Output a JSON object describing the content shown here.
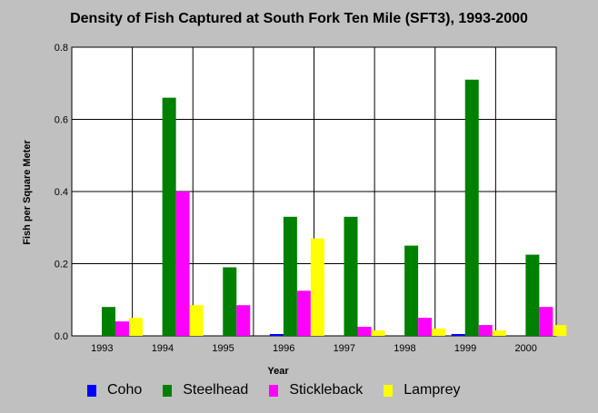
{
  "chart_data": {
    "type": "bar",
    "title": "Density of Fish Captured at South Fork Ten Mile (SFT3), 1993-2000",
    "xlabel": "Year",
    "ylabel": "Fish per Square Meter",
    "ylim": [
      0,
      0.8
    ],
    "yticks": [
      "0.0",
      "0.2",
      "0.4",
      "0.6",
      "0.8"
    ],
    "categories": [
      "1993",
      "1994",
      "1995",
      "1996",
      "1997",
      "1998",
      "1999",
      "2000"
    ],
    "series": [
      {
        "name": "Coho",
        "color": "#0000ff",
        "values": [
          0,
          0,
          0,
          0.005,
          0,
          0,
          0.005,
          0
        ]
      },
      {
        "name": "Steelhead",
        "color": "#008000",
        "values": [
          0.08,
          0.66,
          0.19,
          0.33,
          0.33,
          0.25,
          0.71,
          0.225
        ]
      },
      {
        "name": "Stickleback",
        "color": "#ff00ff",
        "values": [
          0.04,
          0.4,
          0.085,
          0.125,
          0.025,
          0.05,
          0.03,
          0.08
        ]
      },
      {
        "name": "Lamprey",
        "color": "#ffff00",
        "values": [
          0.05,
          0.085,
          0,
          0.27,
          0.015,
          0.02,
          0.015,
          0.03
        ]
      }
    ],
    "grid": true,
    "legend": "bottom"
  }
}
